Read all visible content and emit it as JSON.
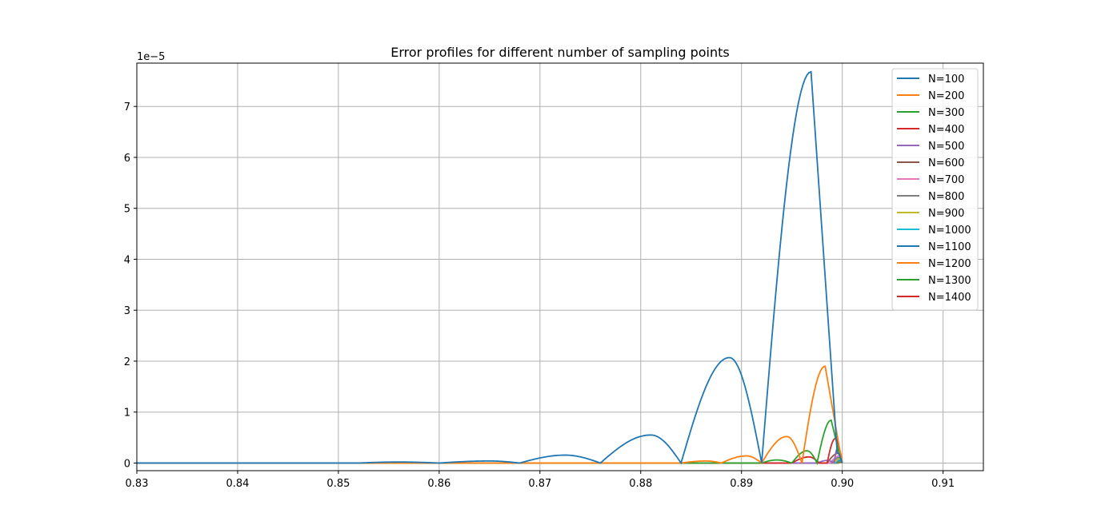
{
  "chart_data": {
    "type": "line",
    "title": "Error profiles for different number of sampling points",
    "xlabel": "",
    "ylabel": "",
    "y_offset_label": "1e−5",
    "y_scale_factor": 1e-05,
    "xlim": [
      0.83,
      0.914
    ],
    "ylim": [
      -1.5e-06,
      7.85e-05
    ],
    "x_ticks": [
      0.83,
      0.84,
      0.85,
      0.86,
      0.87,
      0.88,
      0.89,
      0.9,
      0.91
    ],
    "x_tick_labels": [
      "0.83",
      "0.84",
      "0.85",
      "0.86",
      "0.87",
      "0.88",
      "0.89",
      "0.90",
      "0.91"
    ],
    "y_ticks": [
      0,
      1e-05,
      2e-05,
      3e-05,
      4e-05,
      5e-05,
      6e-05,
      7e-05
    ],
    "y_tick_labels": [
      "0",
      "1",
      "2",
      "3",
      "4",
      "5",
      "6",
      "7"
    ],
    "grid": true,
    "legend_position": "top-right",
    "series": [
      {
        "name": "N=100",
        "color": "#1f77b4",
        "x": [
          0.83,
          0.852,
          0.856,
          0.86,
          0.865,
          0.868,
          0.8725,
          0.876,
          0.881,
          0.884,
          0.8888,
          0.892,
          0.8969,
          0.8995,
          0.9
        ],
        "y": [
          0,
          0,
          2e-07,
          0,
          4e-07,
          0,
          1.55e-06,
          0,
          5.5e-06,
          0,
          2.07e-05,
          0,
          7.68e-05,
          2e-06,
          0
        ]
      },
      {
        "name": "N=200",
        "color": "#ff7f0e",
        "x": [
          0.83,
          0.884,
          0.8865,
          0.888,
          0.8905,
          0.892,
          0.8945,
          0.896,
          0.8983,
          0.8998,
          0.9
        ],
        "y": [
          0,
          0,
          4e-07,
          0,
          1.4e-06,
          0,
          5.2e-06,
          0,
          1.9e-05,
          2e-06,
          0
        ]
      },
      {
        "name": "N=300",
        "color": "#2ca02c",
        "x": [
          0.83,
          0.892,
          0.8935,
          0.895,
          0.8965,
          0.8975,
          0.8989,
          0.8998,
          0.9
        ],
        "y": [
          0,
          0,
          6e-07,
          0,
          2.4e-06,
          0,
          8.4e-06,
          1e-06,
          0
        ]
      },
      {
        "name": "N=400",
        "color": "#d62728",
        "x": [
          0.83,
          0.895,
          0.8967,
          0.8977,
          0.8985,
          0.8993,
          0.9
        ],
        "y": [
          0,
          0,
          1.2e-06,
          0,
          0,
          4.8e-06,
          0
        ]
      },
      {
        "name": "N=500",
        "color": "#9467bd",
        "x": [
          0.83,
          0.8975,
          0.8985,
          0.8992,
          0.8995,
          0.9
        ],
        "y": [
          0,
          0,
          5e-07,
          0,
          2.8e-06,
          0
        ]
      },
      {
        "name": "N=600",
        "color": "#8c564b",
        "x": [
          0.83,
          0.8985,
          0.8996,
          0.9
        ],
        "y": [
          0,
          0,
          1.9e-06,
          0
        ]
      },
      {
        "name": "N=700",
        "color": "#e377c2",
        "x": [
          0.83,
          0.8988,
          0.8997,
          0.9
        ],
        "y": [
          0,
          0,
          1.4e-06,
          0
        ]
      },
      {
        "name": "N=800",
        "color": "#7f7f7f",
        "x": [
          0.83,
          0.899,
          0.8997,
          0.9
        ],
        "y": [
          0,
          0,
          1.1e-06,
          0
        ]
      },
      {
        "name": "N=900",
        "color": "#bcbd22",
        "x": [
          0.83,
          0.8992,
          0.8998,
          0.9
        ],
        "y": [
          0,
          0,
          9e-07,
          0
        ]
      },
      {
        "name": "N=1000",
        "color": "#17becf",
        "x": [
          0.83,
          0.8993,
          0.8998,
          0.9
        ],
        "y": [
          0,
          0,
          7e-07,
          0
        ]
      },
      {
        "name": "N=1100",
        "color": "#1f77b4",
        "x": [
          0.83,
          0.8994,
          0.8998,
          0.9
        ],
        "y": [
          0,
          0,
          5e-07,
          0
        ]
      },
      {
        "name": "N=1200",
        "color": "#ff7f0e",
        "x": [
          0.83,
          0.8995,
          0.8998,
          0.9
        ],
        "y": [
          0,
          0,
          4e-07,
          0
        ]
      },
      {
        "name": "N=1300",
        "color": "#2ca02c",
        "x": [
          0.83,
          0.8996,
          0.8999,
          0.9
        ],
        "y": [
          0,
          0,
          3e-07,
          0
        ]
      },
      {
        "name": "N=1400",
        "color": "#d62728",
        "x": [
          0.83,
          0.8996,
          0.8999,
          0.9
        ],
        "y": [
          0,
          0,
          2e-07,
          0
        ]
      }
    ]
  }
}
